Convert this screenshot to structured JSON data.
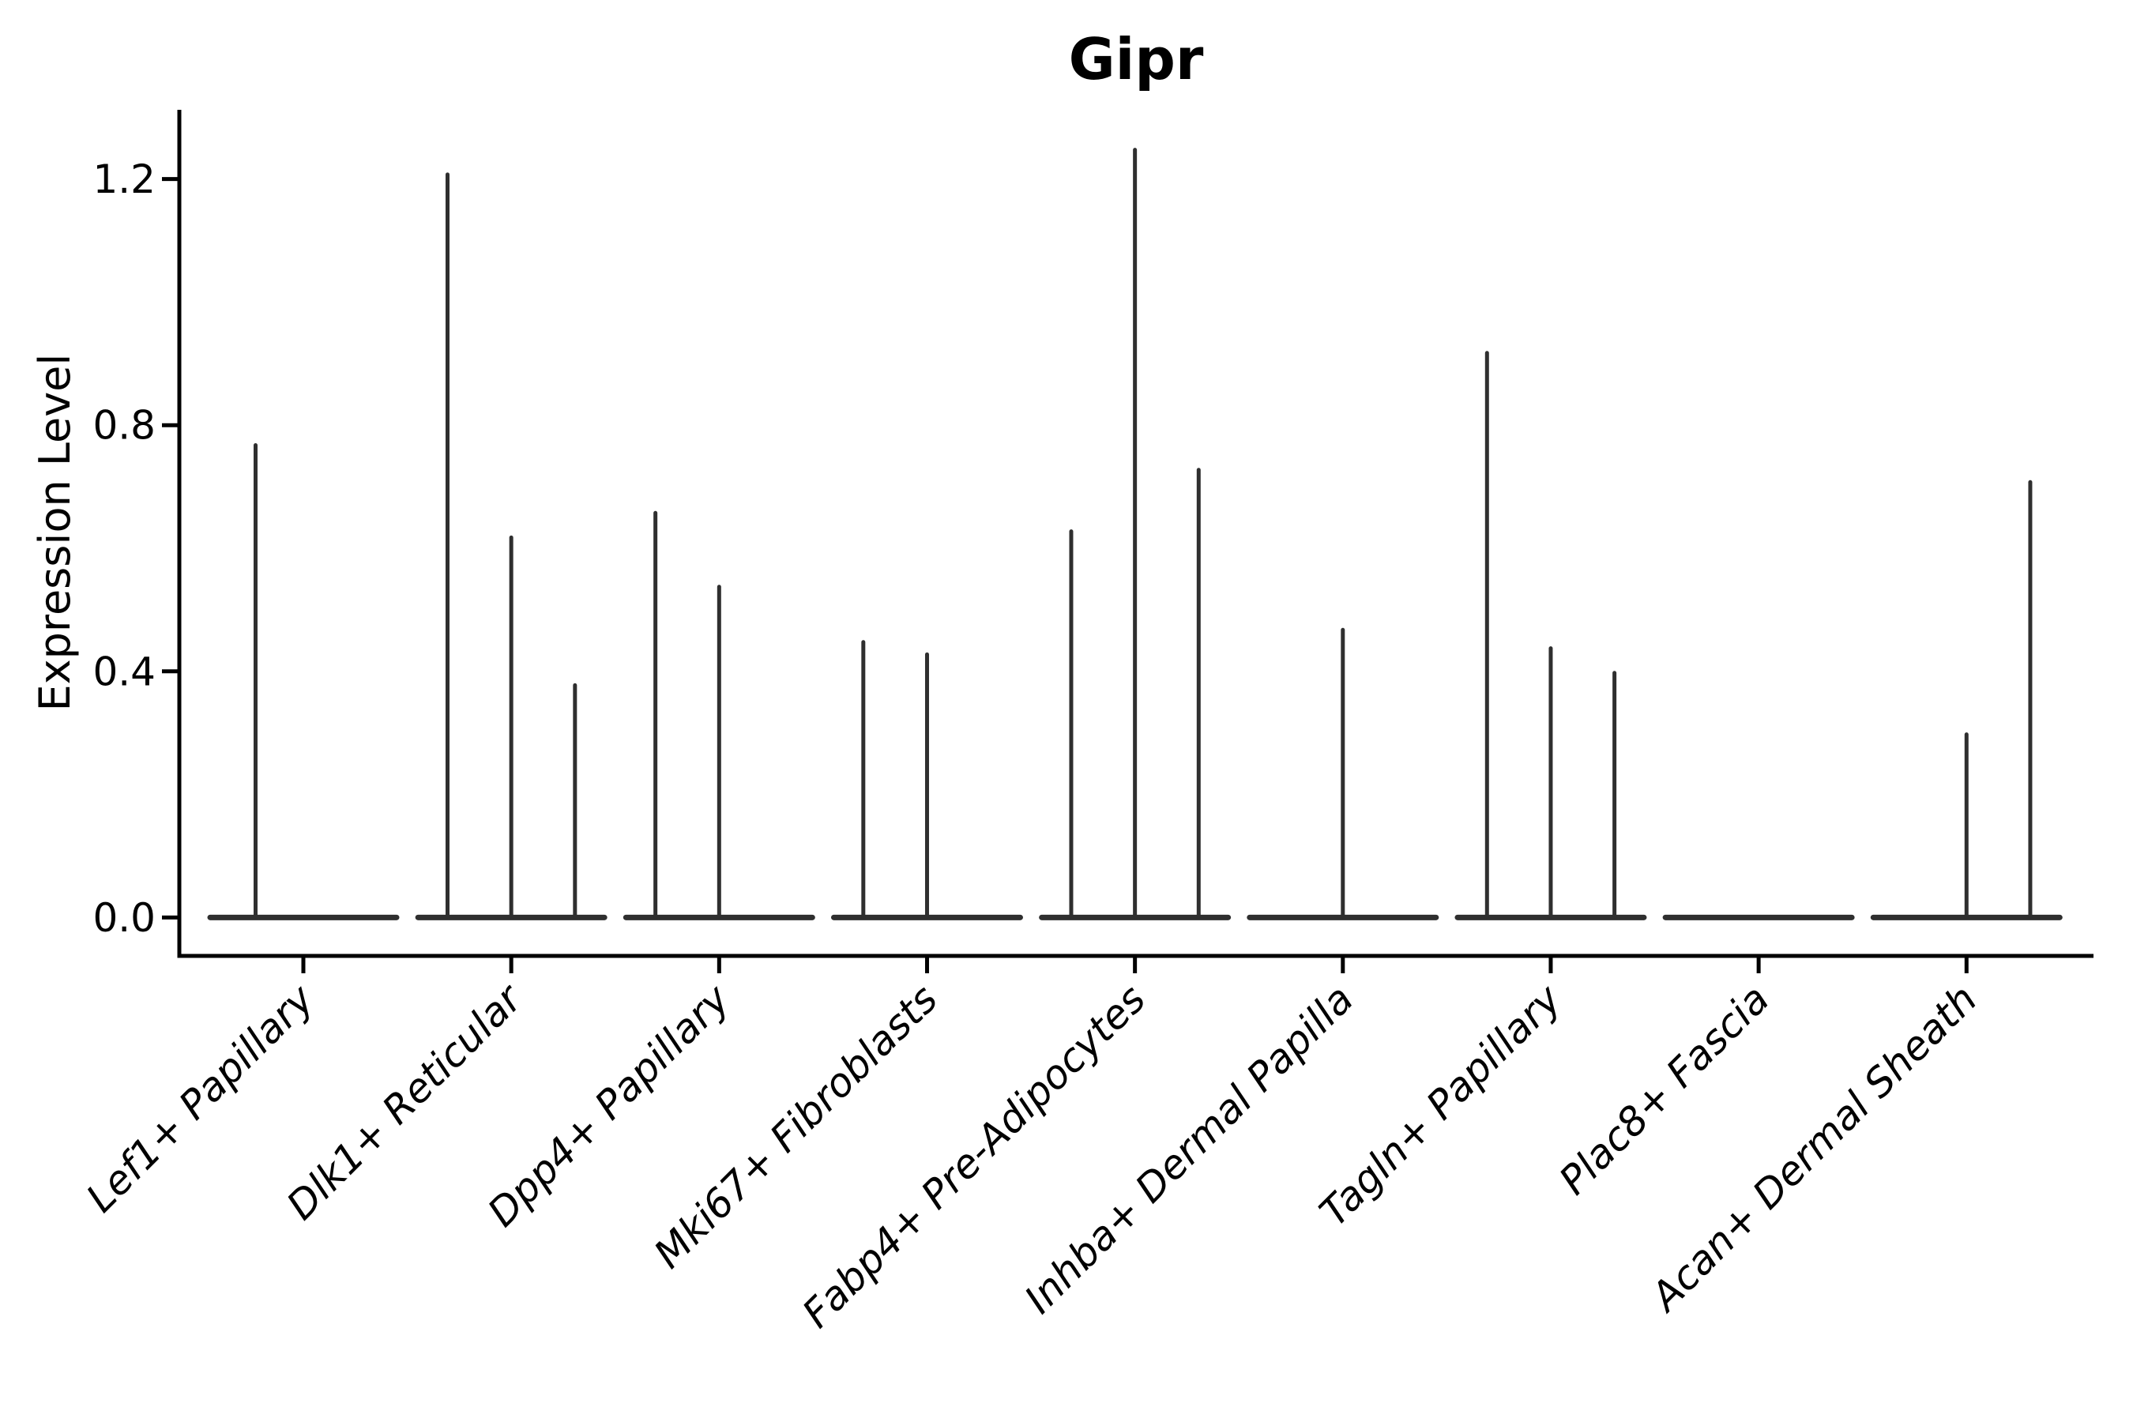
{
  "figure": {
    "background_color": "#ffffff",
    "violin_color": "#2f2f2f",
    "axis_color": "#000000",
    "title": "Gipr"
  },
  "chart_data": {
    "type": "violin",
    "title": "Gipr",
    "xlabel": "",
    "ylabel": "Expression Level",
    "ylim": [
      -0.0625,
      1.3125
    ],
    "yticks": [
      0.0,
      0.4,
      0.8,
      1.2
    ],
    "yticklabels": [
      "0.0",
      "0.4",
      "0.8",
      "1.2"
    ],
    "grid": false,
    "legend": "none",
    "x_tick_rotation_deg": 45,
    "categories": [
      "Lef1+ Papillary",
      "Dlk1+ Reticular",
      "Dpp4+ Papillary",
      "Mki67+ Fibroblasts",
      "Fabp4+ Pre-Adipocytes",
      "Inhba+ Dermal Papilla",
      "Tagln+ Papillary",
      "Plac8+ Fascia",
      "Acan+ Dermal Sheath"
    ],
    "description": "Each category shows flat violins collapsed at expression 0 with thin spikes rising to the maximum expression value of sparse expressing cells; slots are evenly spaced sub-violins within each category.",
    "groups": [
      {
        "label": "Lef1+ Papillary",
        "violins": 2,
        "spikes": [
          {
            "slot": 0,
            "max": 0.77
          }
        ]
      },
      {
        "label": "Dlk1+ Reticular",
        "violins": 3,
        "spikes": [
          {
            "slot": 0,
            "max": 1.21
          },
          {
            "slot": 1,
            "max": 0.62
          },
          {
            "slot": 2,
            "max": 0.38
          }
        ]
      },
      {
        "label": "Dpp4+ Papillary",
        "violins": 3,
        "spikes": [
          {
            "slot": 0,
            "max": 0.66
          },
          {
            "slot": 1,
            "max": 0.54
          }
        ]
      },
      {
        "label": "Mki67+ Fibroblasts",
        "violins": 3,
        "spikes": [
          {
            "slot": 0,
            "max": 0.45
          },
          {
            "slot": 1,
            "max": 0.43
          }
        ]
      },
      {
        "label": "Fabp4+ Pre-Adipocytes",
        "violins": 3,
        "spikes": [
          {
            "slot": 0,
            "max": 0.63
          },
          {
            "slot": 1,
            "max": 1.25
          },
          {
            "slot": 2,
            "max": 0.73
          }
        ]
      },
      {
        "label": "Inhba+ Dermal Papilla",
        "violins": 3,
        "spikes": [
          {
            "slot": 1,
            "max": 0.47
          }
        ]
      },
      {
        "label": "Tagln+ Papillary",
        "violins": 3,
        "spikes": [
          {
            "slot": 0,
            "max": 0.92
          },
          {
            "slot": 1,
            "max": 0.44
          },
          {
            "slot": 2,
            "max": 0.4
          }
        ]
      },
      {
        "label": "Plac8+ Fascia",
        "violins": 3,
        "spikes": []
      },
      {
        "label": "Acan+ Dermal Sheath",
        "violins": 3,
        "spikes": [
          {
            "slot": 1,
            "max": 0.3
          },
          {
            "slot": 2,
            "max": 0.71
          }
        ]
      }
    ]
  }
}
